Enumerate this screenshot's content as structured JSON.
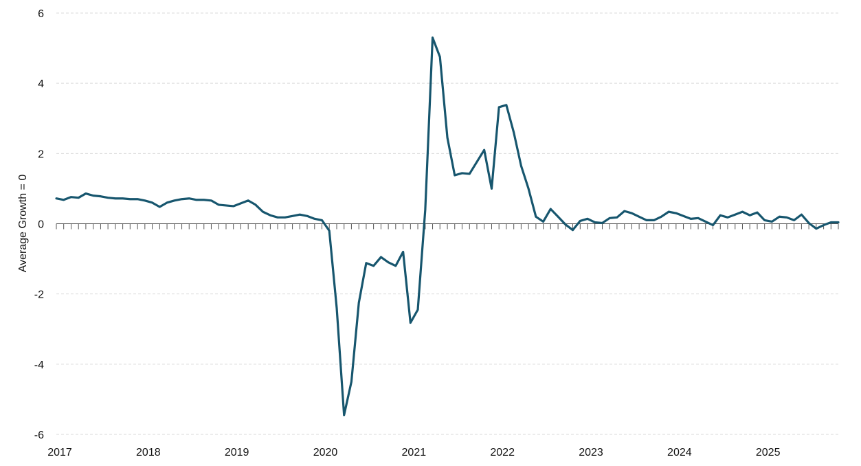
{
  "chart_data": {
    "type": "line",
    "title": "",
    "xlabel": "",
    "ylabel": "Average Growth = 0",
    "ylim": [
      -6,
      6
    ],
    "yticks": [
      6,
      4,
      2,
      0,
      -2,
      -4,
      -6
    ],
    "ytick_labels": [
      "6",
      "4",
      "2",
      "0",
      "-2",
      "-4",
      "-6"
    ],
    "xlim": [
      2017.0,
      2025.833
    ],
    "xticks": [
      2017,
      2018,
      2019,
      2020,
      2021,
      2022,
      2023,
      2024,
      2025
    ],
    "xtick_labels": [
      "2017",
      "2018",
      "2019",
      "2020",
      "2021",
      "2022",
      "2023",
      "2024",
      "2025"
    ],
    "grid": true,
    "legend": "none",
    "colors": {
      "line": "#17566e",
      "grid": "#d9d9d9",
      "axis": "#555555",
      "text": "#111111"
    },
    "series": [
      {
        "name": "Average Growth",
        "x": [
          2017.0,
          2017.083,
          2017.167,
          2017.25,
          2017.333,
          2017.417,
          2017.5,
          2017.583,
          2017.667,
          2017.75,
          2017.833,
          2017.917,
          2018.0,
          2018.083,
          2018.167,
          2018.25,
          2018.333,
          2018.417,
          2018.5,
          2018.583,
          2018.667,
          2018.75,
          2018.833,
          2018.917,
          2019.0,
          2019.083,
          2019.167,
          2019.25,
          2019.333,
          2019.417,
          2019.5,
          2019.583,
          2019.667,
          2019.75,
          2019.833,
          2019.917,
          2020.0,
          2020.083,
          2020.167,
          2020.25,
          2020.333,
          2020.417,
          2020.5,
          2020.583,
          2020.667,
          2020.75,
          2020.833,
          2020.917,
          2021.0,
          2021.083,
          2021.167,
          2021.25,
          2021.333,
          2021.417,
          2021.5,
          2021.583,
          2021.667,
          2021.75,
          2021.833,
          2021.917,
          2022.0,
          2022.083,
          2022.167,
          2022.25,
          2022.333,
          2022.417,
          2022.5,
          2022.583,
          2022.667,
          2022.75,
          2022.833,
          2022.917,
          2023.0,
          2023.083,
          2023.167,
          2023.25,
          2023.333,
          2023.417,
          2023.5,
          2023.583,
          2023.667,
          2023.75,
          2023.833,
          2023.917,
          2024.0,
          2024.083,
          2024.167,
          2024.25,
          2024.333,
          2024.417,
          2024.5,
          2024.583,
          2024.667,
          2024.75,
          2024.833,
          2024.917,
          2025.0,
          2025.083,
          2025.167,
          2025.25,
          2025.333,
          2025.417,
          2025.5,
          2025.583,
          2025.667,
          2025.75,
          2025.833
        ],
        "values": [
          0.72,
          0.68,
          0.76,
          0.74,
          0.86,
          0.8,
          0.78,
          0.74,
          0.72,
          0.72,
          0.7,
          0.7,
          0.66,
          0.6,
          0.48,
          0.6,
          0.66,
          0.7,
          0.72,
          0.68,
          0.68,
          0.66,
          0.54,
          0.52,
          0.5,
          0.58,
          0.66,
          0.54,
          0.34,
          0.24,
          0.18,
          0.18,
          0.22,
          0.26,
          0.22,
          0.14,
          0.1,
          -0.2,
          -2.4,
          -5.45,
          -4.5,
          -2.25,
          -1.12,
          -1.2,
          -0.95,
          -1.1,
          -1.2,
          -0.8,
          -2.82,
          -2.45,
          0.4,
          5.3,
          4.75,
          2.45,
          1.38,
          1.44,
          1.42,
          1.76,
          2.1,
          1.0,
          3.32,
          3.38,
          2.6,
          1.65,
          1.0,
          0.2,
          0.06,
          0.42,
          0.2,
          -0.02,
          -0.18,
          0.08,
          0.14,
          0.04,
          0.02,
          0.16,
          0.18,
          0.36,
          0.3,
          0.2,
          0.1,
          0.1,
          0.2,
          0.34,
          0.3,
          0.22,
          0.14,
          0.16,
          0.06,
          -0.04,
          0.24,
          0.18,
          0.26,
          0.34,
          0.24,
          0.32,
          0.1,
          0.06,
          0.2,
          0.18,
          0.1,
          0.26,
          0.02,
          -0.14,
          -0.04,
          0.04,
          0.04
        ]
      }
    ]
  }
}
